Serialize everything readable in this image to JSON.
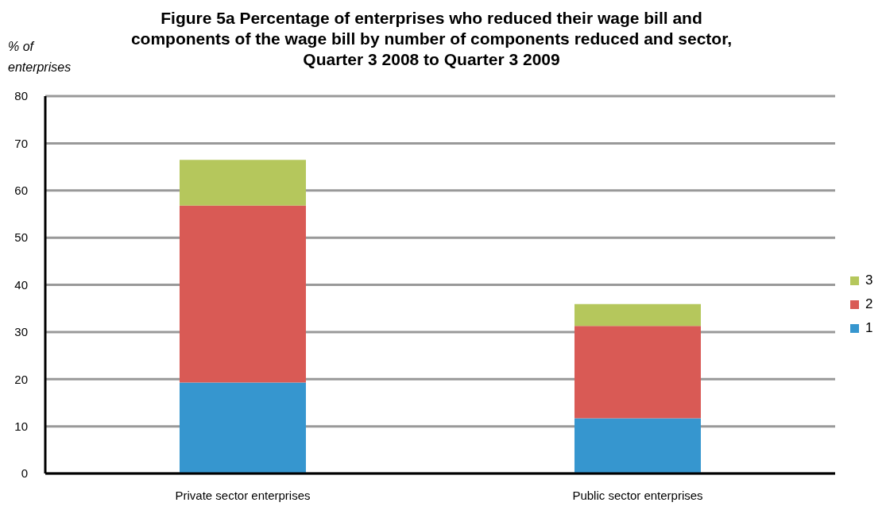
{
  "chart_data": {
    "type": "bar",
    "title": "Figure 5a Percentage of enterprises who reduced their wage bill and components of the wage bill by number of components reduced and sector, Quarter 3 2008 to Quarter 3 2009",
    "ylabel": "% of enterprises",
    "categories": [
      "Private sector enterprises",
      "Public sector enterprises"
    ],
    "stacked": true,
    "series": [
      {
        "name": "1",
        "color": "#3696cf",
        "values": [
          19.3,
          11.7
        ]
      },
      {
        "name": "2",
        "color": "#d95a55",
        "values": [
          37.5,
          19.6
        ]
      },
      {
        "name": "3",
        "color": "#b5c75c",
        "values": [
          9.7,
          4.6
        ]
      }
    ],
    "ylim": [
      0,
      80
    ],
    "yticks": [
      0,
      10,
      20,
      30,
      40,
      50,
      60,
      70,
      80
    ],
    "grid": "y",
    "legend": "right"
  }
}
